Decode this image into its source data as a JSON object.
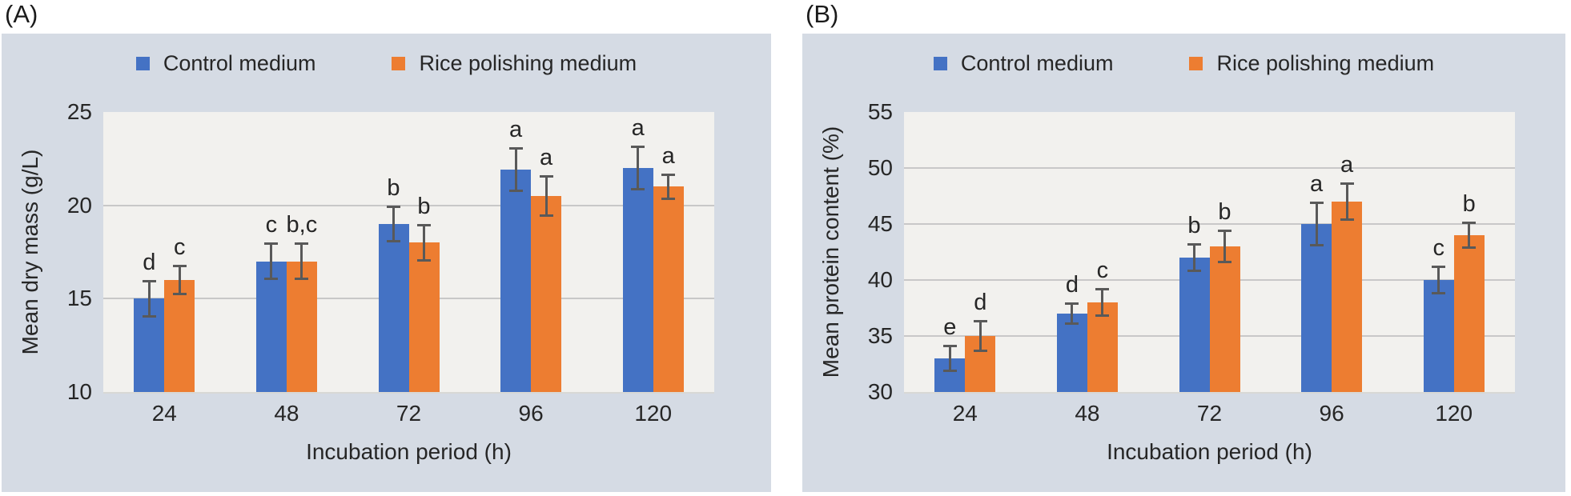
{
  "figure": {
    "panels": [
      {
        "label": "(A)"
      },
      {
        "label": "(B)"
      }
    ]
  },
  "colors": {
    "control_blue": "#4472C4",
    "rice_orange": "#ED7D31",
    "panel_background": "#D5DBE4",
    "plot_background": "#F2F1EE",
    "gridline": "#C8C8C8",
    "error_bar": "#595959",
    "text": "#262626"
  },
  "chart_data": [
    {
      "id": "A",
      "type": "bar",
      "title": "",
      "xlabel": "Incubation period (h)",
      "ylabel": "Mean dry mass (g/L)",
      "ylim": [
        10,
        25
      ],
      "yticks": [
        10,
        15,
        20,
        25
      ],
      "grid": true,
      "legend_position": "top",
      "categories": [
        "24",
        "48",
        "72",
        "96",
        "120"
      ],
      "series": [
        {
          "name": "Control medium",
          "color_key": "control_blue",
          "values": [
            15,
            17,
            19,
            21.9,
            22
          ],
          "errors": [
            1.0,
            1.0,
            1.0,
            1.2,
            1.2
          ],
          "letters": [
            "d",
            "c",
            "b",
            "a",
            "a"
          ]
        },
        {
          "name": "Rice polishing medium",
          "color_key": "rice_orange",
          "values": [
            16,
            17,
            18,
            20.5,
            21
          ],
          "errors": [
            0.8,
            1.0,
            1.0,
            1.1,
            0.7
          ],
          "letters": [
            "c",
            "b,c",
            "b",
            "a",
            "a"
          ]
        }
      ]
    },
    {
      "id": "B",
      "type": "bar",
      "title": "",
      "xlabel": "Incubation period (h)",
      "ylabel": "Mean protein content (%)",
      "ylim": [
        30,
        55
      ],
      "yticks": [
        30,
        35,
        40,
        45,
        50,
        55
      ],
      "grid": true,
      "legend_position": "top",
      "categories": [
        "24",
        "48",
        "72",
        "96",
        "120"
      ],
      "series": [
        {
          "name": "Control medium",
          "color_key": "control_blue",
          "values": [
            33,
            37,
            42,
            45,
            40
          ],
          "errors": [
            1.2,
            1.0,
            1.3,
            2.0,
            1.3
          ],
          "letters": [
            "e",
            "d",
            "b",
            "a",
            "c"
          ]
        },
        {
          "name": "Rice polishing medium",
          "color_key": "rice_orange",
          "values": [
            35,
            38,
            43,
            47,
            44
          ],
          "errors": [
            1.4,
            1.3,
            1.5,
            1.7,
            1.2
          ],
          "letters": [
            "d",
            "c",
            "b",
            "a",
            "b"
          ]
        }
      ]
    }
  ]
}
